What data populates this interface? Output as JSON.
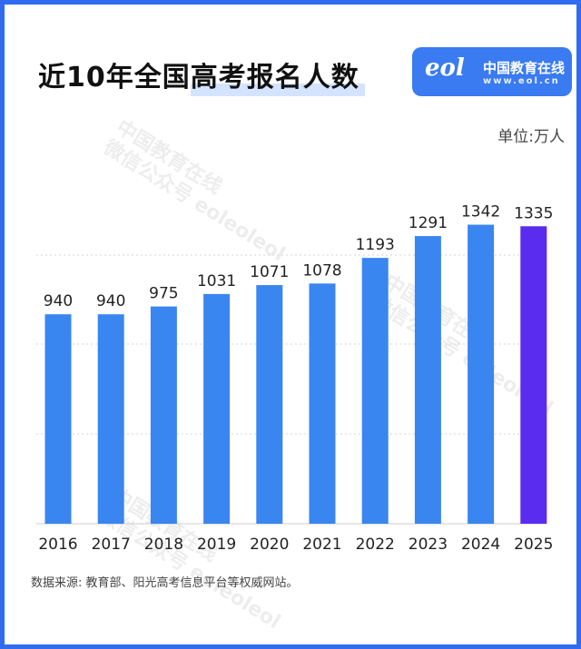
{
  "title": "近10年全国高考报名人数",
  "brand": {
    "logo": "eol",
    "name": "中国教育在线",
    "url": "www.eol.cn",
    "color": "#3a7bf2"
  },
  "unit_label": "单位:万人",
  "source": "数据来源:  教育部、阳光高考信息平台等权威网站。",
  "watermark": {
    "line1": "中国教育在线",
    "line2": "微信公众号 eoleoleol"
  },
  "colors": {
    "bar": "#3a86f0",
    "highlight": "#5a2cf0",
    "frame": "#2f6cf0"
  },
  "chart_data": {
    "type": "bar",
    "title": "近10年全国高考报名人数",
    "categories": [
      "2016",
      "2017",
      "2018",
      "2019",
      "2020",
      "2021",
      "2022",
      "2023",
      "2024",
      "2025"
    ],
    "values": [
      940,
      940,
      975,
      1031,
      1071,
      1078,
      1193,
      1291,
      1342,
      1335
    ],
    "unit": "万人",
    "highlight_index": 9,
    "grid": true,
    "legend": "none"
  }
}
